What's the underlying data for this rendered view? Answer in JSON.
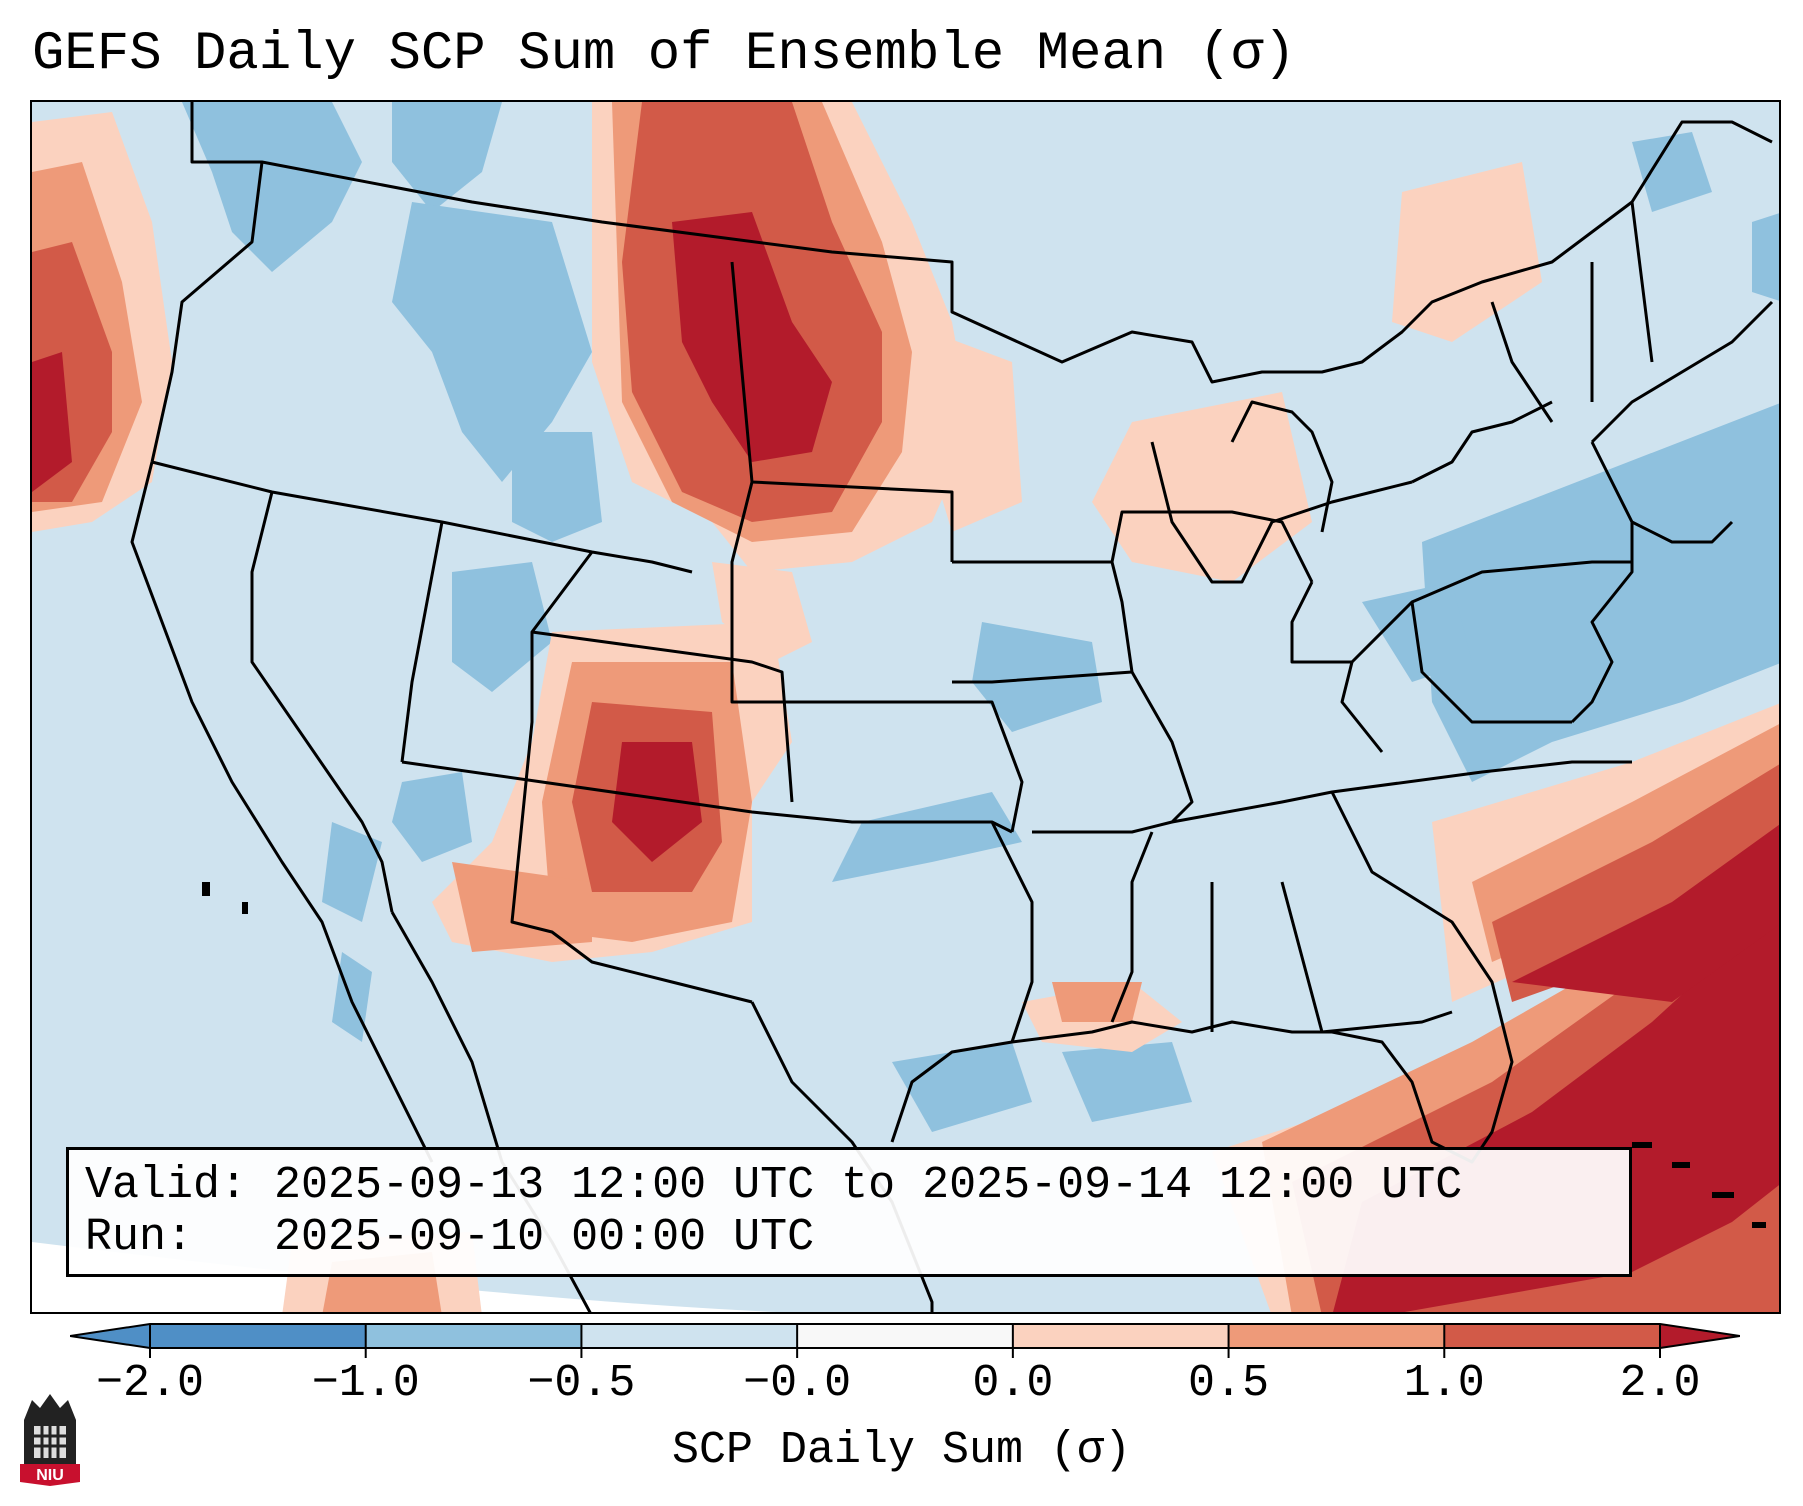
{
  "title": "GEFS Daily SCP Sum of Ensemble Mean (σ)",
  "info": {
    "valid_line": "Valid: 2025-09-13 12:00 UTC to 2025-09-14 12:00 UTC",
    "run_line": "Run:   2025-09-10 00:00 UTC"
  },
  "colorbar": {
    "label": "SCP Daily Sum (σ)",
    "ticks": [
      "−2.0",
      "−1.0",
      "−0.5",
      "−0.0",
      "0.0",
      "0.5",
      "1.0",
      "2.0"
    ],
    "colors": [
      "#4f8fc6",
      "#8fc1de",
      "#cfe3ef",
      "#f8f8f8",
      "#fbd2bf",
      "#ee9a79",
      "#d25a48",
      "#b31b2b"
    ],
    "extend": "both"
  },
  "field_colors": {
    "neutral_blue": "#cfe3ef",
    "light_blue": "#8fc1de",
    "light_red": "#fbd2bf",
    "mid_red": "#ee9a79",
    "red": "#d25a48",
    "dark_red": "#b31b2b"
  },
  "logo": {
    "text": "NIU",
    "icon": "niu-tower-logo-icon"
  }
}
